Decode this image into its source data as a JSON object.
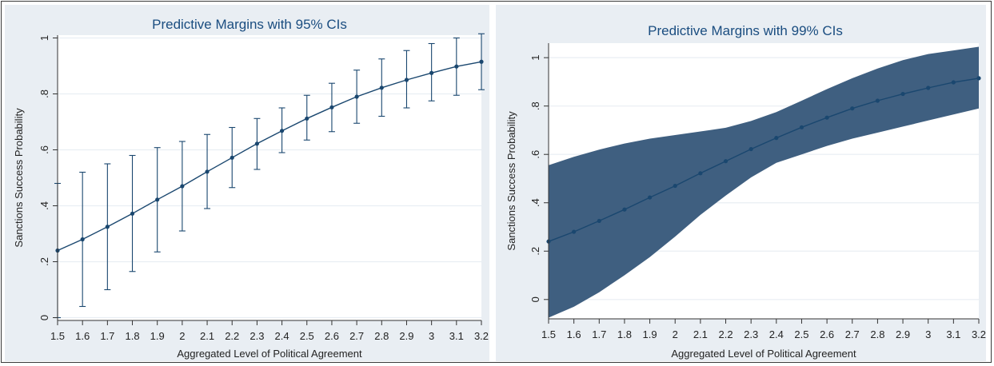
{
  "chart_data": [
    {
      "type": "line",
      "style": "errorbar",
      "title": "Predictive Margins with 95% CIs",
      "xlabel": "Aggregated Level of Political Agreement",
      "ylabel": "Sanctions Success Probability",
      "x": [
        1.5,
        1.6,
        1.7,
        1.8,
        1.9,
        2,
        2.1,
        2.2,
        2.3,
        2.4,
        2.5,
        2.6,
        2.7,
        2.8,
        2.9,
        3,
        3.1,
        3.2
      ],
      "x_tick_labels": [
        "1.5",
        "1.6",
        "1.7",
        "1.8",
        "1.9",
        "2",
        "2.1",
        "2.2",
        "2.3",
        "2.4",
        "2.5",
        "2.6",
        "2.7",
        "2.8",
        "2.9",
        "3",
        "3.1",
        "3.2"
      ],
      "y_ticks": [
        0,
        0.2,
        0.4,
        0.6,
        0.8,
        1
      ],
      "y_tick_labels": [
        "0",
        ".2",
        ".4",
        ".6",
        ".8",
        "1"
      ],
      "xlim": [
        1.5,
        3.2
      ],
      "ylim": [
        -0.01,
        1.01
      ],
      "grid": true,
      "series": [
        {
          "values": [
            0.24,
            0.28,
            0.325,
            0.372,
            0.422,
            0.47,
            0.522,
            0.572,
            0.622,
            0.668,
            0.712,
            0.752,
            0.79,
            0.822,
            0.85,
            0.875,
            0.898,
            0.915
          ],
          "lower": [
            0.0,
            0.04,
            0.1,
            0.165,
            0.235,
            0.31,
            0.39,
            0.465,
            0.53,
            0.59,
            0.635,
            0.665,
            0.695,
            0.72,
            0.75,
            0.775,
            0.795,
            0.815
          ],
          "upper": [
            0.48,
            0.52,
            0.55,
            0.58,
            0.608,
            0.63,
            0.655,
            0.68,
            0.712,
            0.75,
            0.795,
            0.838,
            0.885,
            0.925,
            0.955,
            0.98,
            1.0,
            1.015
          ],
          "color": "#1a476f"
        }
      ]
    },
    {
      "type": "area",
      "style": "ci-band",
      "title": "Predictive Margins with 99% CIs",
      "xlabel": "Aggregated Level of Political Agreement",
      "ylabel": "Sanctions Success Probability",
      "x": [
        1.5,
        1.6,
        1.7,
        1.8,
        1.9,
        2,
        2.1,
        2.2,
        2.3,
        2.4,
        2.5,
        2.6,
        2.7,
        2.8,
        2.9,
        3,
        3.1,
        3.2
      ],
      "x_tick_labels": [
        "1.5",
        "1.6",
        "1.7",
        "1.8",
        "1.9",
        "2",
        "2.1",
        "2.2",
        "2.3",
        "2.4",
        "2.5",
        "2.6",
        "2.7",
        "2.8",
        "2.9",
        "3",
        "3.1",
        "3.2"
      ],
      "y_ticks": [
        0,
        0.2,
        0.4,
        0.6,
        0.8,
        1
      ],
      "y_tick_labels": [
        "0",
        ".2",
        ".4",
        ".6",
        ".8",
        "1"
      ],
      "xlim": [
        1.5,
        3.2
      ],
      "ylim": [
        -0.08,
        1.06
      ],
      "grid": true,
      "series": [
        {
          "values": [
            0.24,
            0.28,
            0.325,
            0.372,
            0.422,
            0.47,
            0.522,
            0.572,
            0.622,
            0.668,
            0.712,
            0.752,
            0.79,
            0.822,
            0.85,
            0.875,
            0.898,
            0.915
          ],
          "lower": [
            -0.075,
            -0.03,
            0.03,
            0.1,
            0.175,
            0.26,
            0.35,
            0.43,
            0.505,
            0.565,
            0.6,
            0.635,
            0.665,
            0.69,
            0.715,
            0.74,
            0.765,
            0.79
          ],
          "upper": [
            0.555,
            0.59,
            0.62,
            0.645,
            0.665,
            0.68,
            0.695,
            0.71,
            0.738,
            0.775,
            0.822,
            0.87,
            0.915,
            0.955,
            0.99,
            1.015,
            1.03,
            1.045
          ],
          "color": "#1a476f",
          "band_color": "#3f5f80"
        }
      ]
    }
  ]
}
